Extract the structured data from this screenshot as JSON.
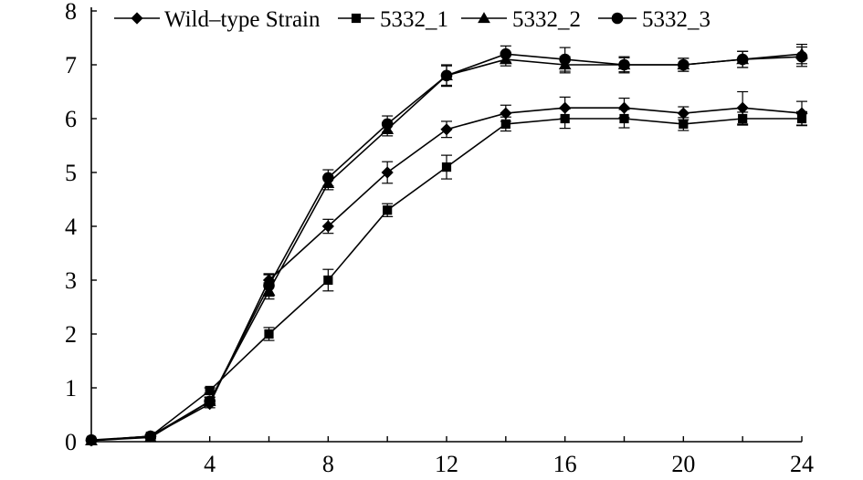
{
  "chart_data": {
    "type": "line",
    "title": "",
    "xlabel": "",
    "ylabel": "",
    "xlim": [
      0,
      24
    ],
    "ylim": [
      0,
      8
    ],
    "x": [
      0,
      2,
      4,
      6,
      8,
      10,
      12,
      14,
      16,
      18,
      20,
      22,
      24
    ],
    "x_ticks": [
      4,
      8,
      12,
      16,
      20,
      24
    ],
    "y_ticks": [
      0,
      1,
      2,
      3,
      4,
      5,
      6,
      7,
      8
    ],
    "grid": false,
    "legend_position": "top",
    "series": [
      {
        "name": "Wild–type Strain",
        "marker": "diamond",
        "values": [
          0.02,
          0.1,
          0.7,
          3.0,
          4.0,
          5.0,
          5.8,
          6.1,
          6.2,
          6.2,
          6.1,
          6.2,
          6.1
        ],
        "errors": [
          0.02,
          0.03,
          0.07,
          0.12,
          0.13,
          0.2,
          0.15,
          0.15,
          0.2,
          0.18,
          0.12,
          0.3,
          0.22
        ]
      },
      {
        "name": "5332_1",
        "marker": "square",
        "values": [
          0.02,
          0.1,
          0.95,
          2.0,
          3.0,
          4.3,
          5.1,
          5.9,
          6.0,
          6.0,
          5.9,
          6.0,
          6.0
        ],
        "errors": [
          0.02,
          0.03,
          0.05,
          0.12,
          0.2,
          0.12,
          0.22,
          0.13,
          0.18,
          0.17,
          0.12,
          0.12,
          0.13
        ]
      },
      {
        "name": "5332_2",
        "marker": "triangle",
        "values": [
          0.02,
          0.08,
          0.75,
          2.8,
          4.8,
          5.8,
          6.8,
          7.1,
          7.0,
          7.0,
          7.0,
          7.1,
          7.2
        ],
        "errors": [
          0.02,
          0.03,
          0.07,
          0.15,
          0.12,
          0.12,
          0.18,
          0.12,
          0.15,
          0.13,
          0.12,
          0.15,
          0.18
        ]
      },
      {
        "name": "5332_3",
        "marker": "circle",
        "values": [
          0.03,
          0.1,
          0.75,
          2.9,
          4.9,
          5.9,
          6.8,
          7.2,
          7.1,
          7.0,
          7.0,
          7.1,
          7.15
        ],
        "errors": [
          0.02,
          0.03,
          0.08,
          0.2,
          0.15,
          0.15,
          0.2,
          0.15,
          0.22,
          0.15,
          0.12,
          0.15,
          0.18
        ]
      }
    ]
  }
}
